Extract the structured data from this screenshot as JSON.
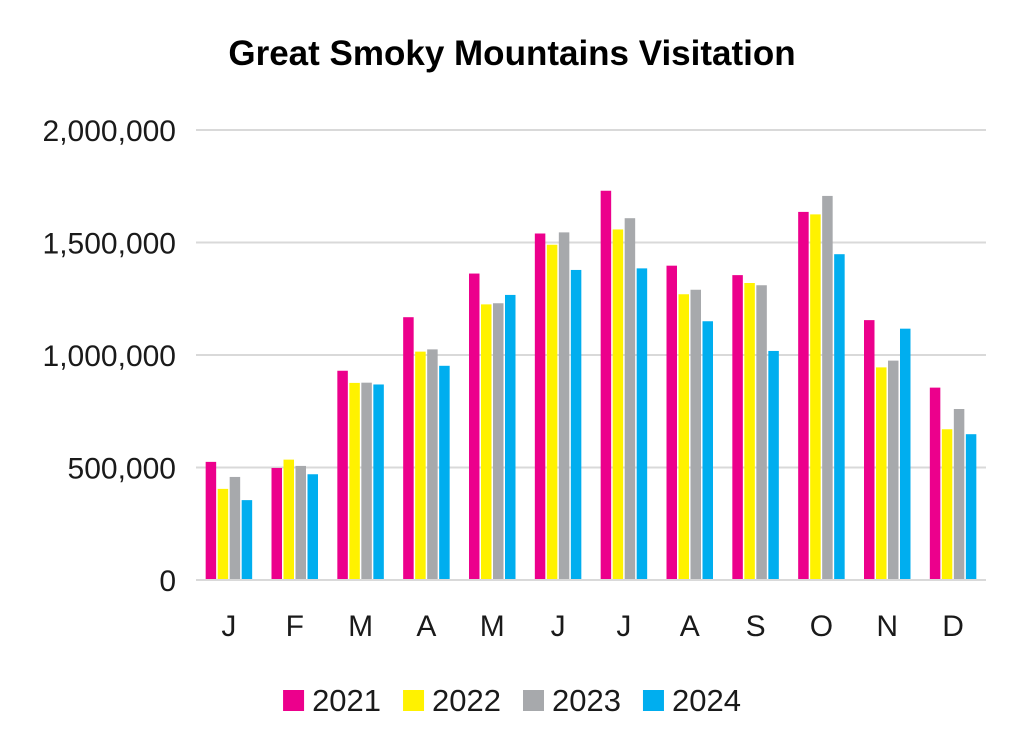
{
  "chart_data": {
    "type": "bar",
    "title": "Great Smoky Mountains Visitation",
    "xlabel": "",
    "ylabel": "",
    "ylim": [
      0,
      2000000
    ],
    "y_ticks": [
      {
        "value": 0,
        "label": "0"
      },
      {
        "value": 500000,
        "label": "500,000"
      },
      {
        "value": 1000000,
        "label": "1,000,000"
      },
      {
        "value": 1500000,
        "label": "1,500,000"
      },
      {
        "value": 2000000,
        "label": "2,000,000"
      }
    ],
    "grid": true,
    "legend_position": "bottom",
    "categories": [
      "J",
      "F",
      "M",
      "A",
      "M",
      "J",
      "J",
      "A",
      "S",
      "O",
      "N",
      "D"
    ],
    "series": [
      {
        "name": "2021",
        "color": "#EC008C",
        "values": [
          525000,
          498000,
          930000,
          1168000,
          1362000,
          1540000,
          1730000,
          1397000,
          1355000,
          1636000,
          1155000,
          855000
        ]
      },
      {
        "name": "2022",
        "color": "#FFF200",
        "values": [
          405000,
          535000,
          876000,
          1015000,
          1225000,
          1490000,
          1558000,
          1270000,
          1320000,
          1625000,
          945000,
          670000
        ]
      },
      {
        "name": "2023",
        "color": "#A7A9AC",
        "values": [
          458000,
          507000,
          877000,
          1025000,
          1230000,
          1545000,
          1608000,
          1290000,
          1310000,
          1707000,
          975000,
          760000
        ]
      },
      {
        "name": "2024",
        "color": "#00AEEF",
        "values": [
          355000,
          470000,
          869000,
          952000,
          1267000,
          1378000,
          1385000,
          1150000,
          1018000,
          1448000,
          1117000,
          648000
        ]
      }
    ]
  }
}
